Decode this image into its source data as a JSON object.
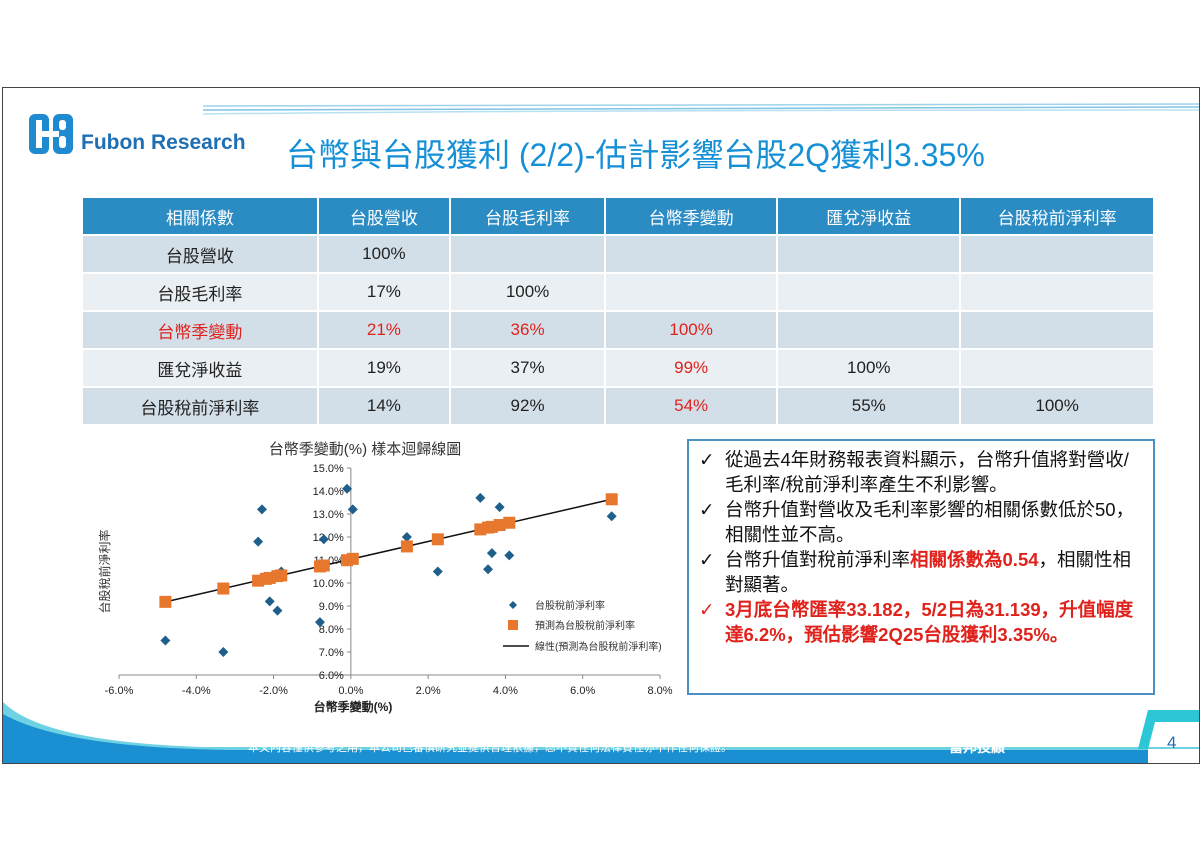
{
  "header": {
    "brand": "Fubon Research",
    "title": "台幣與台股獲利 (2/2)-估計影響台股2Q獲利3.35%"
  },
  "table": {
    "headers": [
      "相關係數",
      "台股營收",
      "台股毛利率",
      "台幣季變動",
      "匯兌淨收益",
      "台股稅前淨利率"
    ],
    "rows": [
      [
        "台股營收",
        "100%",
        "",
        "",
        "",
        ""
      ],
      [
        "台股毛利率",
        "17%",
        "100%",
        "",
        "",
        ""
      ],
      [
        "台幣季變動",
        "21%",
        "36%",
        "100%",
        "",
        ""
      ],
      [
        "匯兌淨收益",
        "19%",
        "37%",
        "99%",
        "100%",
        ""
      ],
      [
        "台股稅前淨利率",
        "14%",
        "92%",
        "54%",
        "55%",
        "100%"
      ]
    ],
    "red_cells": [
      [
        2,
        0
      ],
      [
        2,
        1
      ],
      [
        2,
        2
      ],
      [
        2,
        3
      ],
      [
        3,
        3
      ],
      [
        4,
        3
      ]
    ]
  },
  "chart_data": {
    "type": "scatter",
    "title": "台幣季變動(%) 樣本迴歸線圖",
    "xlabel": "台幣季變動(%)",
    "ylabel": "台股稅前淨利率",
    "xlim": [
      -6.0,
      8.0
    ],
    "ylim": [
      6.0,
      15.0
    ],
    "xticks": [
      "-6.0%",
      "-4.0%",
      "-2.0%",
      "0.0%",
      "2.0%",
      "4.0%",
      "6.0%",
      "8.0%"
    ],
    "yticks": [
      "6.0%",
      "7.0%",
      "8.0%",
      "9.0%",
      "10.0%",
      "11.0%",
      "12.0%",
      "13.0%",
      "14.0%",
      "15.0%"
    ],
    "legend_position": "right",
    "series": [
      {
        "name": "台股稅前淨利率",
        "marker": "diamond",
        "color": "#1f5f8b",
        "points": [
          [
            -4.8,
            7.5
          ],
          [
            -3.3,
            7.0
          ],
          [
            -2.3,
            13.2
          ],
          [
            -2.4,
            11.8
          ],
          [
            -2.1,
            9.2
          ],
          [
            -1.9,
            8.8
          ],
          [
            -1.8,
            10.5
          ],
          [
            -0.8,
            8.3
          ],
          [
            -0.7,
            11.9
          ],
          [
            -0.1,
            14.1
          ],
          [
            0.05,
            13.2
          ],
          [
            1.45,
            12.0
          ],
          [
            2.25,
            10.5
          ],
          [
            3.35,
            13.7
          ],
          [
            3.55,
            10.6
          ],
          [
            3.65,
            11.3
          ],
          [
            3.85,
            13.3
          ],
          [
            4.1,
            11.2
          ],
          [
            6.75,
            12.9
          ]
        ]
      },
      {
        "name": "預測為台股稅前淨利率",
        "marker": "square",
        "color": "#e8772e",
        "points": [
          [
            -4.8,
            9.18
          ],
          [
            -3.3,
            9.76
          ],
          [
            -2.4,
            10.1
          ],
          [
            -2.2,
            10.18
          ],
          [
            -2.1,
            10.22
          ],
          [
            -1.9,
            10.3
          ],
          [
            -1.8,
            10.33
          ],
          [
            -0.8,
            10.72
          ],
          [
            -0.7,
            10.76
          ],
          [
            -0.1,
            10.99
          ],
          [
            0.05,
            11.05
          ],
          [
            1.45,
            11.59
          ],
          [
            2.25,
            11.9
          ],
          [
            3.35,
            12.33
          ],
          [
            3.55,
            12.41
          ],
          [
            3.65,
            12.44
          ],
          [
            3.85,
            12.52
          ],
          [
            4.1,
            12.62
          ],
          [
            6.75,
            13.64
          ]
        ]
      }
    ],
    "trendline": {
      "name": "線性(預測為台股稅前淨利率)",
      "from": [
        -4.8,
        9.18
      ],
      "to": [
        6.75,
        13.64
      ]
    }
  },
  "notes": [
    {
      "text": "從過去4年財務報表資料顯示，台幣升值將對營收/毛利率/稅前淨利率產生不利影響。",
      "style": "normal"
    },
    {
      "text": "台幣升值對營收及毛利率影響的相關係數低於50，相關性並不高。",
      "style": "normal"
    },
    {
      "text_before": "台幣升值對稅前淨利率",
      "highlight": "相關係數為0.54",
      "text_after": "，相關性相對顯著。",
      "style": "mixed"
    },
    {
      "text": "3月底台幣匯率33.182，5/2日為31.139，升值幅度達6.2%，預估影響2Q25台股獲利3.35%。",
      "style": "red"
    }
  ],
  "check_symbol": "✓",
  "footer": {
    "disclaimer": "本文內容僅供參考之用，本公司已審慎研究並提供合理依據，恕不負任何法律責任亦不作任何保證。",
    "company": "富邦投顧",
    "page": "4"
  },
  "colors": {
    "title": "#1590d6",
    "header_bg": "#2b8cc4",
    "row_odd": "#d3dfe8",
    "row_even": "#eaeff3",
    "highlight_red": "#e0221c",
    "footer_band": "#1a8fd1",
    "accent_teal": "#2bc7d6"
  }
}
